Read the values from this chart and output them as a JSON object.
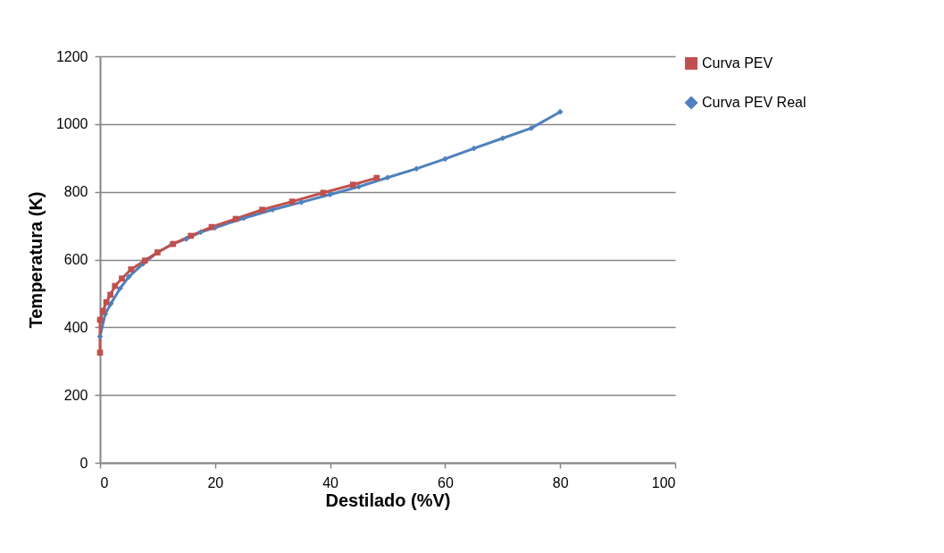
{
  "chart_data": {
    "type": "line",
    "xlabel": "Destilado (%V)",
    "ylabel": "Temperatura (K)",
    "xlim": [
      0,
      100
    ],
    "xticks": [
      0,
      20,
      40,
      60,
      80,
      100
    ],
    "ylim": [
      0,
      1200
    ],
    "yticks": [
      0,
      200,
      400,
      600,
      800,
      1000,
      1200
    ],
    "grid": "y",
    "legend": "right",
    "series": [
      {
        "name": "Curva PEV",
        "color": "#c0504d",
        "marker": "square",
        "x": [
          0,
          0,
          0.5,
          1.1,
          1.8,
          2.6,
          3.8,
          5.4,
          7.8,
          10,
          12.7,
          15.8,
          19.4,
          23.6,
          28.2,
          33.4,
          38.8,
          44,
          48.1
        ],
        "values": [
          325,
          422,
          448,
          474,
          496,
          522,
          544,
          571,
          597,
          621,
          646,
          670,
          696,
          720,
          747,
          771,
          797,
          821,
          841
        ]
      },
      {
        "name": "Curva PEV Real",
        "color": "#4f81bd",
        "marker": "diamond",
        "x": [
          0,
          0.9,
          1.9,
          3.5,
          5,
          7.5,
          10,
          12.5,
          15,
          17.5,
          20,
          25,
          30,
          35,
          40,
          45,
          50,
          55,
          60,
          65,
          70,
          75,
          80
        ],
        "values": [
          373,
          439,
          470,
          515,
          549,
          588,
          621,
          645,
          661,
          681,
          694,
          722,
          747,
          769,
          792,
          815,
          842,
          868,
          897,
          928,
          958,
          988,
          1036
        ]
      }
    ]
  }
}
